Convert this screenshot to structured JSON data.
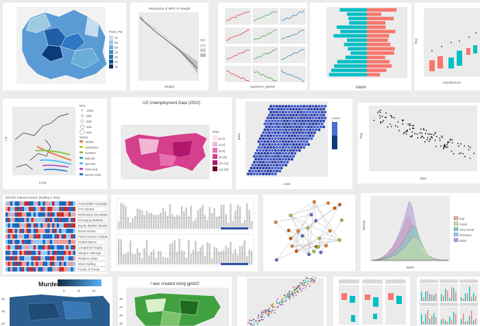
{
  "tiles": {
    "t1": {
      "legend_title": "Pubs_Per",
      "legend_values": [
        "70",
        "60",
        "50",
        "40",
        "30",
        "20",
        "10"
      ]
    },
    "t2": {
      "title": "Regression of MPG on Weight",
      "xlabel": "Weight",
      "ylabel": "Miles per Gallon",
      "legend_title": "Cyl"
    },
    "t3": {
      "xlabel": "log10(iron_ppmw)",
      "ylabel": "log10(count)"
    },
    "t4": {
      "xlabel": "count",
      "ylabel": "BESNR(0)DYSE"
    },
    "t5": {
      "ylabel": "hwy",
      "xlabel": "manufacturer"
    },
    "t6": {
      "xlabel": "Long",
      "ylabel": "Lat",
      "legend1_title": "hPa",
      "legend1_values": [
        "1000",
        "980",
        "960",
        "940",
        "920"
      ],
      "legend2_title": "Name",
      "legend2_values": [
        "AERE",
        "SONGDA",
        "SARIKA",
        "MEARI",
        "MA-ON",
        "TOKAGE",
        "NOCK-TEN"
      ]
    },
    "t7": {
      "title": "US Unemployment Data (2010)",
      "legend_title": "Rate",
      "legend_values": [
        "[0,4]",
        "(4,6]",
        "(6,8]",
        "(8,10]",
        "(10,12]",
        "(12,30]"
      ]
    },
    "t8": {
      "xlabel": "carat",
      "ylabel": "price",
      "legend_title": "count"
    },
    "t9": {
      "xlabel": "displ",
      "ylabel": "hwy"
    },
    "t10": {
      "title": "EDHEC Indexes Return (Rolling 1 Year)",
      "rows": [
        "Convertible Arbitrage",
        "CTA Global",
        "Distressed Securities",
        "Emerging Markets",
        "Equity Market Neutral",
        "Event Driven",
        "Fixed Income Arbitrage",
        "Global Macro",
        "Long/Short Equity",
        "Merger Arbitrage",
        "Relative Value",
        "Short Selling",
        "Funds of Funds"
      ]
    },
    "t13": {
      "xlabel": "depth",
      "ylabel": "density",
      "legend_values": [
        "Fair",
        "Good",
        "Very Good",
        "Premium",
        "Ideal"
      ]
    },
    "t14": {
      "title": "Murder",
      "ticks": [
        "5",
        "10",
        "15"
      ],
      "yticks": [
        "50",
        "45",
        "40"
      ]
    },
    "t15": {
      "title": "I was created using gplot2!",
      "yticks": [
        "48",
        "44",
        "40",
        "36",
        "32"
      ]
    }
  },
  "colors": {
    "page_bg": "#ececec",
    "tile_bg": "#ffffff",
    "ggplot_panel": "#ebebeb",
    "blue_dark": "#0d3b7a",
    "blue_light": "#9ecae1",
    "salmon": "#f8766d",
    "teal": "#00bfc4"
  }
}
